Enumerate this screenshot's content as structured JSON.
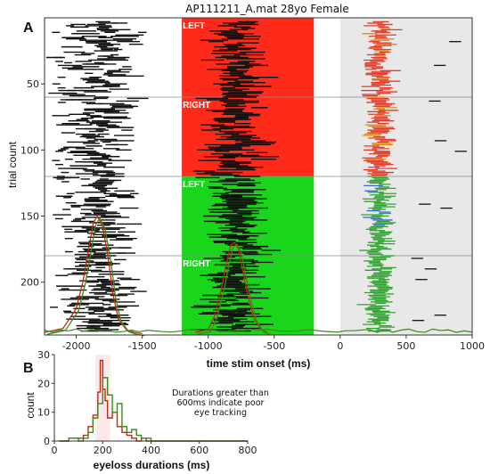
{
  "colors": {
    "left_block_a": "#ff2a1a",
    "right_block_a": "#ff2a1a",
    "left_block_b": "#1ad61a",
    "right_block_b": "#1ad61a",
    "response_shade": "#e8e8e8",
    "fix_marks": "#111111",
    "post_red": "#e63a2a",
    "post_green": "#2ea32e",
    "post_orange": "#e08a10",
    "post_blue": "#3a6ad8",
    "curve_red": "#c02818",
    "curve_green": "#3a8a1a",
    "curve_dark": "#333333"
  },
  "chart_data": [
    {
      "type": "scatter",
      "panel_label": "A",
      "title": "AP111211_A.mat 28yo Female",
      "xlabel": "time stim onset (ms)",
      "ylabel": "trial count",
      "xlim": [
        -2240,
        1000
      ],
      "ylim": [
        240,
        0
      ],
      "xticks": [
        -2000,
        -1500,
        -1000,
        -500,
        0,
        500,
        1000
      ],
      "yticks": [
        50,
        100,
        150,
        200
      ],
      "blocks": [
        {
          "label": "LEFT",
          "trial_start": 0,
          "trial_end": 60,
          "x_start": -1200,
          "x_end": -200,
          "color": "red"
        },
        {
          "label": "RIGHT",
          "trial_start": 60,
          "trial_end": 120,
          "x_start": -1200,
          "x_end": -200,
          "color": "red"
        },
        {
          "label": "LEFT",
          "trial_start": 120,
          "trial_end": 180,
          "x_start": -1200,
          "x_end": -200,
          "color": "green"
        },
        {
          "label": "RIGHT",
          "trial_start": 180,
          "trial_end": 240,
          "x_start": -1200,
          "x_end": -200,
          "color": "green"
        }
      ],
      "block_dividers_trials": [
        60,
        120,
        180
      ],
      "response_window": [
        0,
        1000
      ],
      "eyeloss_fixation_mean_ms": -1830,
      "eyeloss_stim_mean_ms": -800,
      "eyeloss_response_mean_ms": 300,
      "distribution_curves": [
        {
          "region": "fixation",
          "x": [
            -2240,
            -2100,
            -2000,
            -1950,
            -1900,
            -1870,
            -1840,
            -1800,
            -1760,
            -1720,
            -1680,
            -1620,
            -1560,
            -1500
          ],
          "y": [
            238,
            235,
            220,
            200,
            172,
            155,
            150,
            158,
            180,
            210,
            228,
            236,
            238,
            239
          ]
        },
        {
          "region": "stim",
          "x": [
            -1100,
            -1000,
            -950,
            -900,
            -860,
            -830,
            -800,
            -770,
            -740,
            -700,
            -650,
            -600,
            -550
          ],
          "y": [
            238,
            236,
            225,
            205,
            185,
            172,
            170,
            175,
            190,
            210,
            228,
            236,
            238
          ]
        }
      ]
    },
    {
      "type": "line",
      "panel_label": "B",
      "xlabel": "eyeloss durations (ms)",
      "ylabel": "count",
      "xlim": [
        0,
        800
      ],
      "ylim": [
        0,
        30
      ],
      "xticks": [
        0,
        200,
        400,
        600,
        800
      ],
      "yticks": [
        0,
        10,
        20,
        30
      ],
      "annotation": "Durations greater than 600ms indicate poor eye tracking",
      "series": [
        {
          "color": "red",
          "x": [
            20,
            60,
            100,
            120,
            140,
            160,
            180,
            190,
            200,
            210,
            220,
            240,
            260,
            280,
            300,
            320,
            340,
            360,
            380,
            400,
            440,
            500,
            600,
            700,
            800
          ],
          "y": [
            0,
            1,
            1,
            2,
            5,
            9,
            17,
            28,
            18,
            14,
            8,
            10,
            5,
            3,
            2,
            1,
            0,
            1,
            0,
            0,
            0,
            0,
            0,
            0,
            0
          ]
        },
        {
          "color": "green",
          "x": [
            20,
            60,
            100,
            120,
            140,
            160,
            180,
            200,
            220,
            240,
            260,
            280,
            300,
            320,
            340,
            360,
            380,
            400,
            440,
            500,
            600,
            700,
            800
          ],
          "y": [
            0,
            1,
            0,
            1,
            3,
            8,
            13,
            22,
            16,
            10,
            13,
            5,
            3,
            4,
            2,
            1,
            1,
            0,
            0,
            0,
            0,
            0,
            0
          ]
        }
      ]
    }
  ]
}
